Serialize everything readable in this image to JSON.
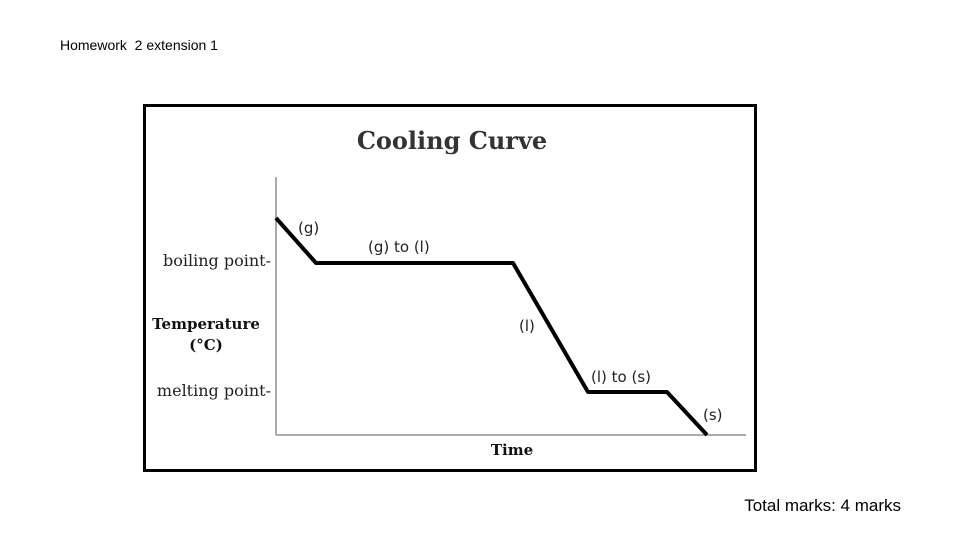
{
  "header": {
    "title": "Homework  2 extension 1"
  },
  "diagram": {
    "title": "Cooling Curve",
    "y_axis": {
      "label_line1": "Temperature",
      "label_line2": "(°C)",
      "marks": [
        "boiling point-",
        "melting point-"
      ]
    },
    "x_axis": {
      "label": "Time"
    },
    "phases": [
      "(g)",
      "(g) to (l)",
      "(l)",
      "(l) to (s)",
      "(s)"
    ]
  },
  "footer": {
    "marks": "Total marks: 4 marks"
  }
}
